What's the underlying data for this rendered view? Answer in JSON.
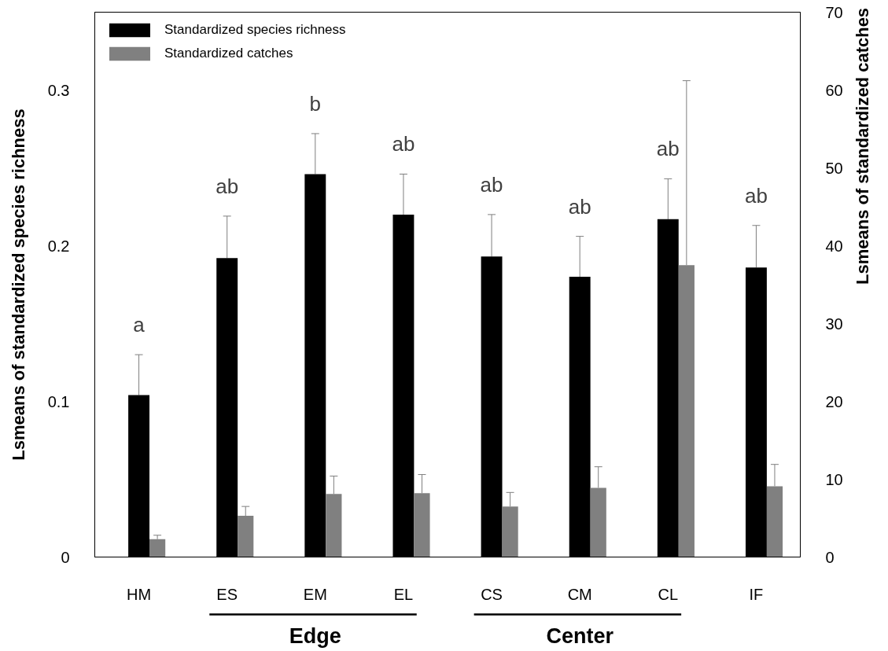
{
  "chart_data": {
    "type": "bar",
    "categories": [
      "HM",
      "ES",
      "EM",
      "EL",
      "CS",
      "CM",
      "CL",
      "IF"
    ],
    "ylabel": "Lsmeans of standardized species richness",
    "y2label": "Lsmeans of standardized catches",
    "ylim": [
      0,
      0.35
    ],
    "yticks": [
      0,
      0.1,
      0.2,
      0.3
    ],
    "y2lim": [
      0,
      70
    ],
    "y2ticks": [
      0,
      10,
      20,
      30,
      40,
      50,
      60,
      70
    ],
    "series": [
      {
        "name": "Standardized species richness",
        "color": "#000000",
        "values": [
          0.104,
          0.192,
          0.246,
          0.22,
          0.193,
          0.18,
          0.217,
          0.186
        ],
        "errors": [
          [
            0.104,
            0.13
          ],
          [
            0.192,
            0.219
          ],
          [
            0.246,
            0.272
          ],
          [
            0.22,
            0.246
          ],
          [
            0.193,
            0.22
          ],
          [
            0.18,
            0.206
          ],
          [
            0.217,
            0.243
          ],
          [
            0.186,
            0.213
          ]
        ]
      },
      {
        "name": "Standardized catches",
        "color": "#808080",
        "axis": "y2",
        "values": [
          2.3,
          5.3,
          8.1,
          8.2,
          6.5,
          8.9,
          37.5,
          9.1
        ],
        "errors": [
          [
            2.3,
            2.8
          ],
          [
            5.3,
            6.5
          ],
          [
            8.1,
            10.4
          ],
          [
            8.2,
            10.6
          ],
          [
            6.5,
            8.3
          ],
          [
            8.9,
            11.6
          ],
          [
            37.5,
            61.2
          ],
          [
            9.1,
            11.9
          ]
        ]
      }
    ],
    "legend": "top left",
    "annotations": [
      "a",
      "ab",
      "b",
      "ab",
      "ab",
      "ab",
      "ab",
      "ab",
      "Edge",
      "Center"
    ]
  }
}
